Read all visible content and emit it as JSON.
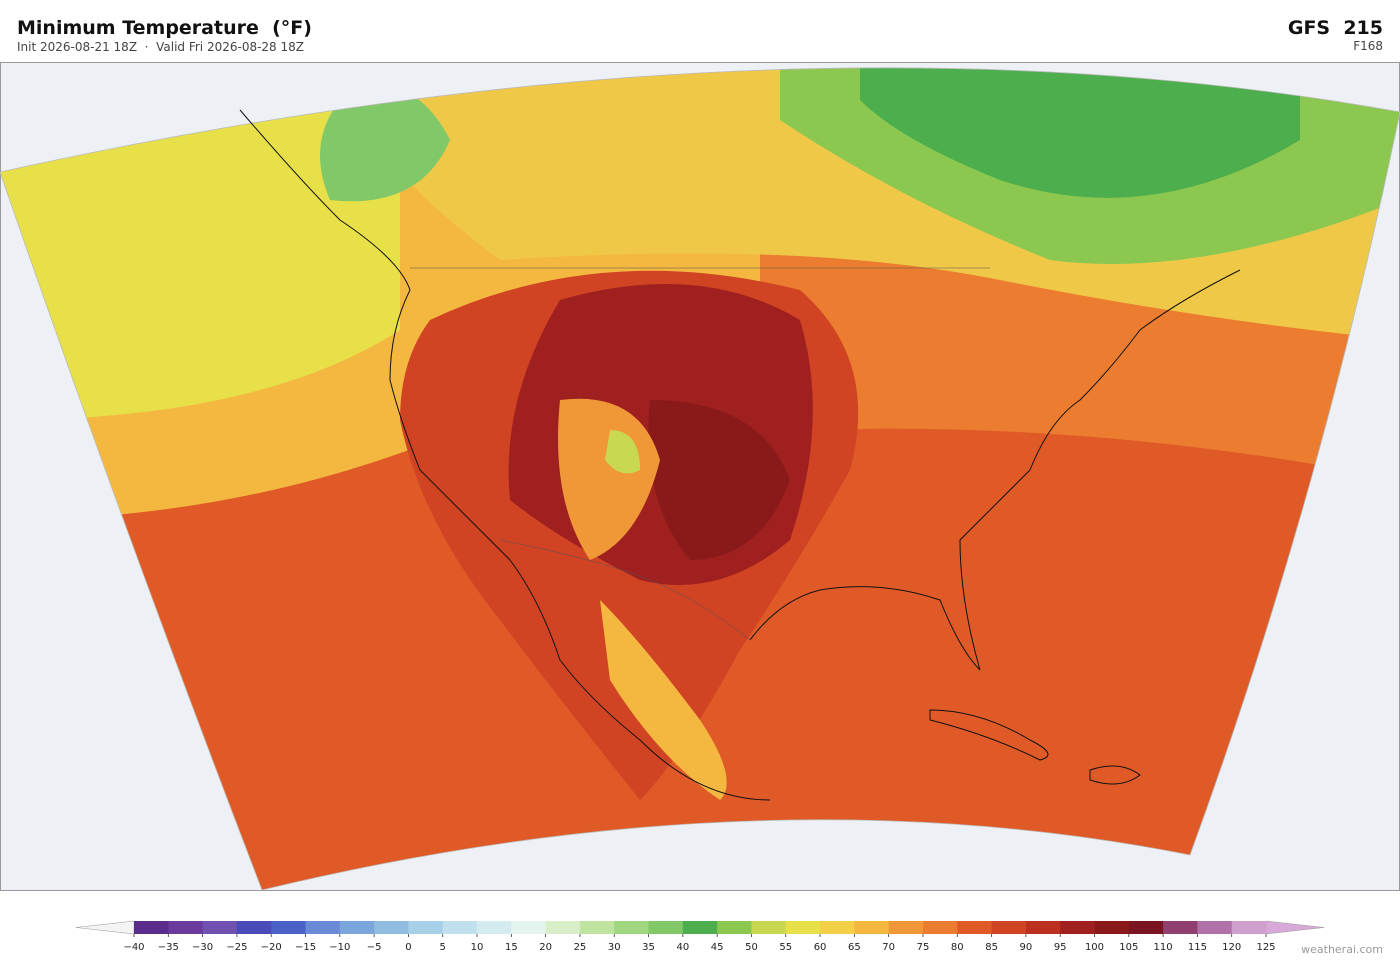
{
  "header": {
    "title": "Minimum Temperature  (°F)",
    "subtitle": "Init 2026-08-21 18Z  ·  Valid Fri 2026-08-28 18Z",
    "model": "GFS  215",
    "forecast": "F168"
  },
  "colorbar": {
    "ticks": [
      {
        "value": -40,
        "label": "−40"
      },
      {
        "value": -35,
        "label": "−35"
      },
      {
        "value": -30,
        "label": "−30"
      },
      {
        "value": -25,
        "label": "−25"
      },
      {
        "value": -20,
        "label": "−20"
      },
      {
        "value": -15,
        "label": "−15"
      },
      {
        "value": -10,
        "label": "−10"
      },
      {
        "value": -5,
        "label": "−5"
      },
      0,
      5,
      10,
      15,
      20,
      25,
      30,
      35,
      40,
      45,
      50,
      55,
      60,
      65,
      70,
      75,
      80,
      85,
      90,
      95,
      100,
      105,
      110,
      115,
      120,
      125
    ],
    "colors": [
      "#5a2d8c",
      "#6a3a9c",
      "#7050b0",
      "#4a4ab8",
      "#4a62c8",
      "#6a8ad8",
      "#7aa6dc",
      "#90bce0",
      "#a8d0e8",
      "#c0e0ee",
      "#d4ecf0",
      "#e4f4ee",
      "#d8eec8",
      "#c0e4a0",
      "#a0d880",
      "#80c868",
      "#4cae4c",
      "#8cc850",
      "#c8d850",
      "#e8e048",
      "#f4d048",
      "#f4b840",
      "#f09838",
      "#ec7c30",
      "#e05a28",
      "#d04424",
      "#bc3020",
      "#a02020",
      "#8a1a1a",
      "#7a1420",
      "#904070",
      "#b070a8",
      "#d0a0cc"
    ],
    "extend_colors": [
      "#f4f4f4",
      "#d8a8d8"
    ]
  },
  "credit": "weatherai.com"
}
